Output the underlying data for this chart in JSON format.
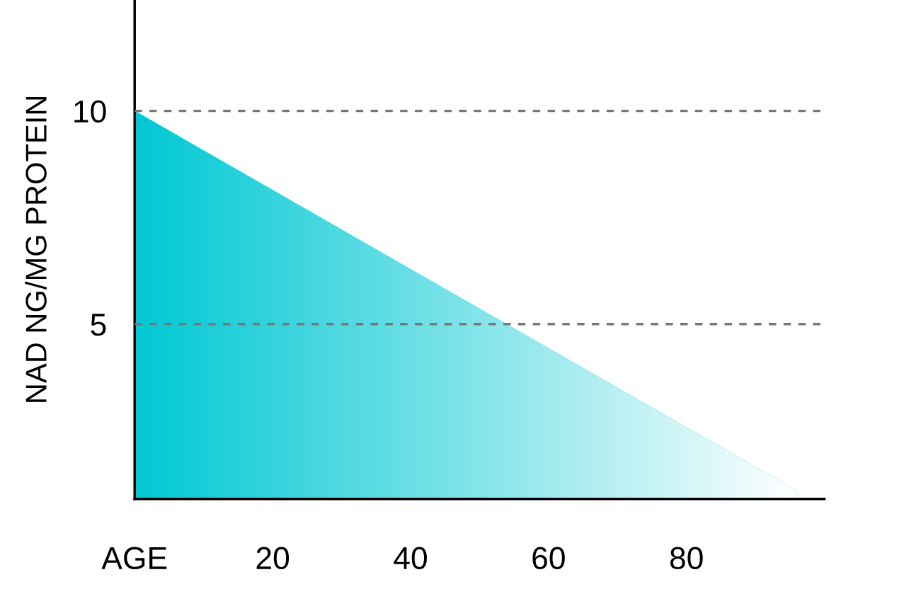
{
  "chart_data": {
    "type": "area",
    "ylabel": "NAD NG/MG PROTEIN",
    "x": [
      0,
      96
    ],
    "series": [
      {
        "color": "#00c8d3",
        "values": [
          10,
          1.1
        ]
      }
    ],
    "xlim": [
      0,
      100
    ],
    "ylim": [
      0.9,
      12.6
    ],
    "xticks": [
      {
        "value": 0,
        "label": "AGE"
      },
      20,
      40,
      60,
      80
    ],
    "yticks": [
      5,
      10
    ],
    "grid": "y",
    "line_style": "dashed"
  }
}
